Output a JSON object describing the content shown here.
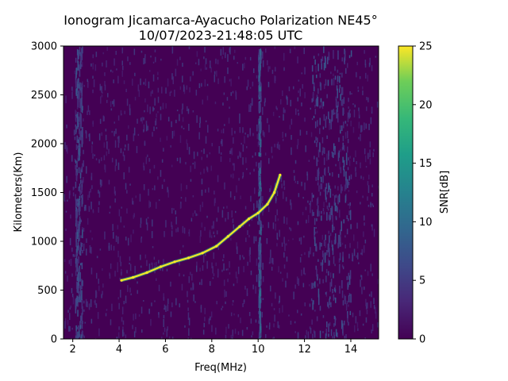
{
  "chart_data": {
    "type": "heatmap",
    "title_line1": "Ionogram Jicamarca-Ayacucho Polarization NE45°",
    "title_line2": "10/07/2023-21:48:05 UTC",
    "xlabel": "Freq(MHz)",
    "ylabel": "Kilometers(Km)",
    "xlim": [
      1.6,
      15.2
    ],
    "ylim": [
      0,
      3000
    ],
    "xticks": [
      2,
      4,
      6,
      8,
      10,
      12,
      14
    ],
    "yticks": [
      0,
      500,
      1000,
      1500,
      2000,
      2500,
      3000
    ],
    "colorbar": {
      "label": "SNR[dB]",
      "range": [
        0,
        25
      ],
      "ticks": [
        0,
        5,
        10,
        15,
        20,
        25
      ],
      "colormap": "viridis"
    },
    "colors": {
      "background_low": "#440154",
      "trace_high": "#fde725"
    },
    "echo_trace": {
      "name": "",
      "x": [
        4.1,
        4.6,
        5.2,
        5.8,
        6.4,
        7.0,
        7.6,
        8.2,
        8.7,
        9.2,
        9.6,
        10.0,
        10.4,
        10.7,
        10.95
      ],
      "y": [
        600,
        630,
        680,
        740,
        790,
        830,
        880,
        950,
        1050,
        1150,
        1230,
        1290,
        1380,
        1500,
        1680
      ]
    },
    "noise_bands": [
      {
        "x_range": [
          10.0,
          10.1
        ],
        "snr": 8
      },
      {
        "x_range": [
          12.3,
          14.0
        ],
        "snr": 6
      },
      {
        "x_range": [
          2.1,
          2.4
        ],
        "snr": 6
      }
    ]
  }
}
